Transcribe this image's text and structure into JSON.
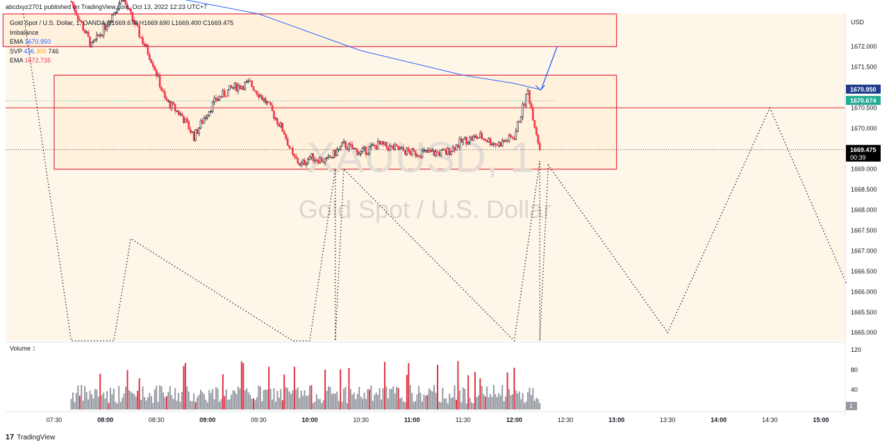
{
  "header": {
    "published": "abcdxyz2701 published on TradingView.com, Oct 13, 2022 12:23 UTC+7"
  },
  "legend": {
    "symbol_line": "Gold Spot / U.S. Dollar, 1, OANDA  O1669.670  H1669.690  L1669.400  C1669.475",
    "imbalance": "Imbalance",
    "ema1_label": "EMA",
    "ema1_value": "1670.950",
    "svp_label": "SVP",
    "svp_v1": "436",
    "svp_v2": "309",
    "svp_v3": "746",
    "ema2_label": "EMA",
    "ema2_value": "1672.735"
  },
  "watermark": {
    "ticker": "XAUUSD, 1",
    "name": "Gold Spot / U.S. Dollar"
  },
  "volume_label": {
    "title": "Volume",
    "param": "1"
  },
  "footer": {
    "brand": "TradingView",
    "logo": "17"
  },
  "colors": {
    "bull": "#131722",
    "bear": "#f23645",
    "ema": "#2962ff",
    "zone_fill": "#fff1dc",
    "zone_border": "#e0303f",
    "volume": "#9598a1",
    "volume_hi": "#e0303f"
  },
  "chart_data": {
    "type": "candlestick",
    "currency": "USD",
    "x_labels": [
      "07:30",
      "08:00",
      "08:30",
      "09:00",
      "09:30",
      "10:00",
      "10:30",
      "11:00",
      "11:30",
      "12:00",
      "12:30",
      "13:00",
      "13:30",
      "14:00",
      "14:30",
      "15:00"
    ],
    "y_ticks": [
      "1672.000",
      "1671.500",
      "1671.000",
      "1670.500",
      "1670.000",
      "1669.500",
      "1669.000",
      "1668.500",
      "1668.000",
      "1667.500",
      "1667.000",
      "1666.500",
      "1666.000",
      "1665.500",
      "1665.000"
    ],
    "ylim": [
      1664.8,
      1672.8
    ],
    "price_tags": [
      {
        "label": "1670.950",
        "price": 1670.95,
        "color": "#1e3a8a"
      },
      {
        "label": "1670.674",
        "price": 1670.674,
        "color": "#22ab94"
      },
      {
        "label": "1669.475",
        "price": 1669.475,
        "color": "#000000",
        "sub": "00:39"
      }
    ],
    "close_path": [
      [
        "07:40",
        1673.1
      ],
      [
        "07:52",
        1672.0
      ],
      [
        "08:00",
        1672.5
      ],
      [
        "08:10",
        1673.2
      ],
      [
        "08:20",
        1672.3
      ],
      [
        "08:28",
        1671.6
      ],
      [
        "08:35",
        1670.7
      ],
      [
        "08:45",
        1670.3
      ],
      [
        "08:52",
        1669.8
      ],
      [
        "09:00",
        1670.4
      ],
      [
        "09:05",
        1670.7
      ],
      [
        "09:15",
        1671.0
      ],
      [
        "09:25",
        1671.1
      ],
      [
        "09:35",
        1670.6
      ],
      [
        "09:45",
        1669.9
      ],
      [
        "09:50",
        1669.3
      ],
      [
        "09:55",
        1669.1
      ],
      [
        "10:00",
        1669.3
      ],
      [
        "10:10",
        1669.2
      ],
      [
        "10:20",
        1669.6
      ],
      [
        "10:30",
        1669.4
      ],
      [
        "10:40",
        1669.6
      ],
      [
        "10:50",
        1669.5
      ],
      [
        "11:00",
        1669.4
      ],
      [
        "11:10",
        1669.4
      ],
      [
        "11:20",
        1669.4
      ],
      [
        "11:30",
        1669.7
      ],
      [
        "11:40",
        1669.8
      ],
      [
        "11:50",
        1669.6
      ],
      [
        "12:00",
        1669.8
      ],
      [
        "12:05",
        1670.5
      ],
      [
        "12:08",
        1670.9
      ],
      [
        "12:11",
        1670.3
      ],
      [
        "12:15",
        1669.5
      ]
    ],
    "ema_path": [
      [
        "08:40",
        1673.2
      ],
      [
        "09:30",
        1672.8
      ],
      [
        "10:30",
        1671.9
      ],
      [
        "11:30",
        1671.3
      ],
      [
        "12:00",
        1671.1
      ],
      [
        "12:15",
        1670.95
      ]
    ],
    "zones": [
      {
        "x0": "07:00",
        "x1": "13:00",
        "y0": 1672.0,
        "y1": 1672.8
      },
      {
        "x0": "07:30",
        "x1": "13:00",
        "y0": 1669.0,
        "y1": 1671.3
      }
    ],
    "hlines": [
      {
        "price": 1670.5,
        "color": "#e0303f"
      }
    ],
    "dotted_path": [
      [
        "07:12",
        1672.8
      ],
      [
        "07:40",
        1664.8
      ],
      [
        "08:05",
        1664.8
      ],
      [
        "08:15",
        1667.3
      ],
      [
        "09:50",
        1664.8
      ],
      [
        "10:00",
        1664.8
      ],
      [
        "10:15",
        1669.0
      ],
      [
        "10:15",
        1664.8
      ],
      [
        "10:20",
        1669.0
      ],
      [
        "12:00",
        1664.8
      ],
      [
        "12:15",
        1669.2
      ],
      [
        "12:15",
        1664.8
      ],
      [
        "12:20",
        1669.1
      ],
      [
        "13:30",
        1665.0
      ],
      [
        "14:30",
        1670.5
      ],
      [
        "15:15",
        1666.2
      ]
    ],
    "volume_ticks": [
      "120",
      "80",
      "40"
    ],
    "volume_tag": "1",
    "volume_ylim": [
      0,
      130
    ]
  }
}
